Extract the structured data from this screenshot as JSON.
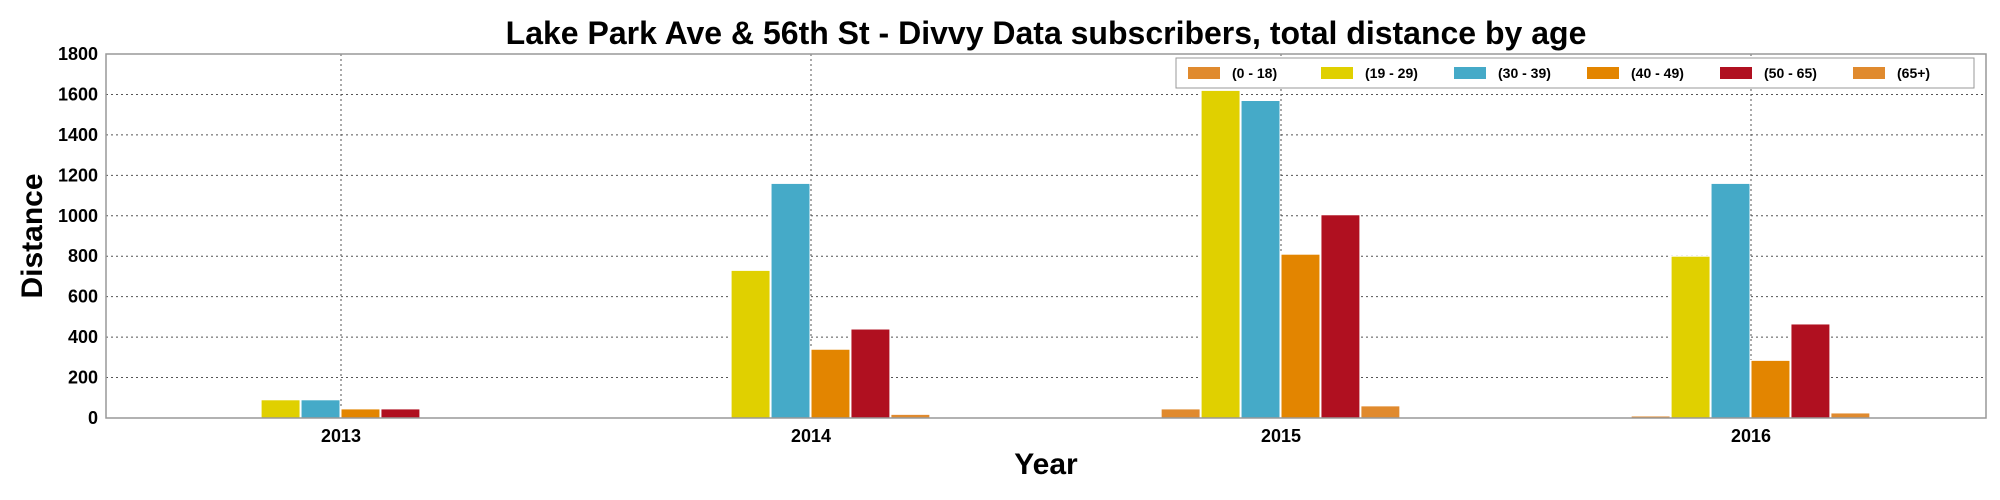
{
  "chart_data": {
    "type": "bar",
    "title": "Lake Park Ave & 56th St - Divvy Data subscribers, total distance by age",
    "xlabel": "Year",
    "ylabel": "Distance",
    "categories": [
      "2013",
      "2014",
      "2015",
      "2016"
    ],
    "ylim": [
      0,
      1800
    ],
    "yticks": [
      0,
      200,
      400,
      600,
      800,
      1000,
      1200,
      1400,
      1600,
      1800
    ],
    "grid": true,
    "legend_position": "top-right",
    "series": [
      {
        "name": "(0 - 18)",
        "color": "#e08a2e",
        "values": [
          0,
          0,
          45,
          10
        ]
      },
      {
        "name": "(19 - 29)",
        "color": "#e0d000",
        "values": [
          90,
          730,
          1620,
          800
        ]
      },
      {
        "name": "(30 - 39)",
        "color": "#45aac8",
        "values": [
          90,
          1160,
          1570,
          1160
        ]
      },
      {
        "name": "(40 - 49)",
        "color": "#e38500",
        "values": [
          45,
          340,
          810,
          285
        ]
      },
      {
        "name": "(50 - 65)",
        "color": "#b01020",
        "values": [
          45,
          440,
          1005,
          465
        ]
      },
      {
        "name": "(65+)",
        "color": "#e08a2e",
        "values": [
          0,
          18,
          60,
          25
        ]
      }
    ]
  }
}
